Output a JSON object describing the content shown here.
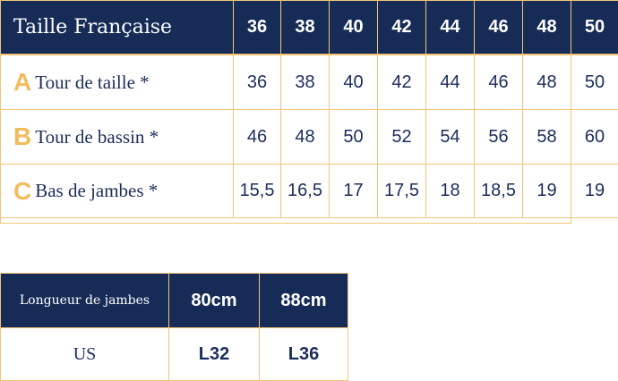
{
  "size_table": {
    "header_label": "Taille Française",
    "sizes": [
      "36",
      "38",
      "40",
      "42",
      "44",
      "46",
      "48",
      "50"
    ],
    "rows": [
      {
        "letter": "A",
        "label": "Tour de taille *",
        "values": [
          "36",
          "38",
          "40",
          "42",
          "44",
          "46",
          "48",
          "50"
        ]
      },
      {
        "letter": "B",
        "label": "Tour de bassin *",
        "values": [
          "46",
          "48",
          "50",
          "52",
          "54",
          "56",
          "58",
          "60"
        ]
      },
      {
        "letter": "C",
        "label": "Bas de jambes *",
        "values": [
          "15,5",
          "16,5",
          "17",
          "17,5",
          "18",
          "18,5",
          "19",
          "19"
        ]
      }
    ]
  },
  "length_table": {
    "header_label": "Longueur de jambes",
    "lengths": [
      "80cm",
      "88cm"
    ],
    "row_label": "US",
    "values": [
      "L32",
      "L36"
    ]
  },
  "colors": {
    "header_bg": "#162c57",
    "accent": "#f2bc5d",
    "border": "#f2c579",
    "text": "#1b2d5a"
  }
}
